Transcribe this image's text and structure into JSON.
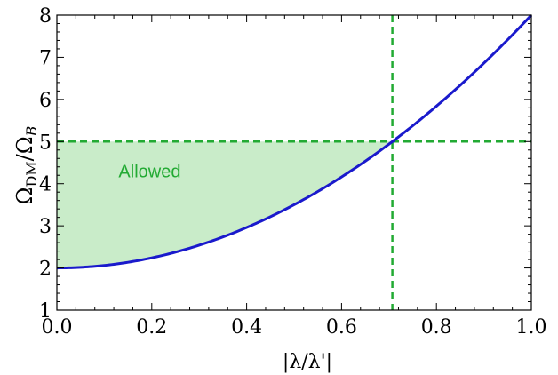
{
  "chart_data": {
    "type": "line",
    "xlabel": "|λ/λ'|",
    "ylabel": {
      "prefix": "Ω",
      "num_sub": "DM",
      "sep": "/Ω",
      "den_sub": "B"
    },
    "xlim": [
      0.0,
      1.0
    ],
    "ylim": [
      1,
      8
    ],
    "x_ticks": [
      "0.0",
      "0.2",
      "0.4",
      "0.6",
      "0.8",
      "1.0"
    ],
    "y_ticks": [
      "1",
      "2",
      "3",
      "4",
      "5",
      "6",
      "7",
      "8"
    ],
    "series": [
      {
        "color": "#1a1acc",
        "points": [
          [
            0.0,
            2.0
          ],
          [
            0.1,
            2.06
          ],
          [
            0.2,
            2.24
          ],
          [
            0.3,
            2.54
          ],
          [
            0.4,
            2.96
          ],
          [
            0.5,
            3.5
          ],
          [
            0.6,
            4.16
          ],
          [
            0.7071,
            5.0
          ],
          [
            0.8,
            5.84
          ],
          [
            0.9,
            6.86
          ],
          [
            1.0,
            8.0
          ]
        ]
      }
    ],
    "reference_lines": {
      "horizontal_y": 5,
      "vertical_x": 0.7071,
      "color": "#22aa33",
      "style": "dashed"
    },
    "shaded_region": {
      "label": "Allowed",
      "color": "#c9ecc9",
      "between": "curve and y = 5",
      "x_range": [
        0.0,
        0.7071
      ]
    },
    "annotation": {
      "text": "Allowed",
      "x": 0.13,
      "y": 4.3,
      "color": "#22aa33"
    },
    "grid": false,
    "frame": true
  }
}
